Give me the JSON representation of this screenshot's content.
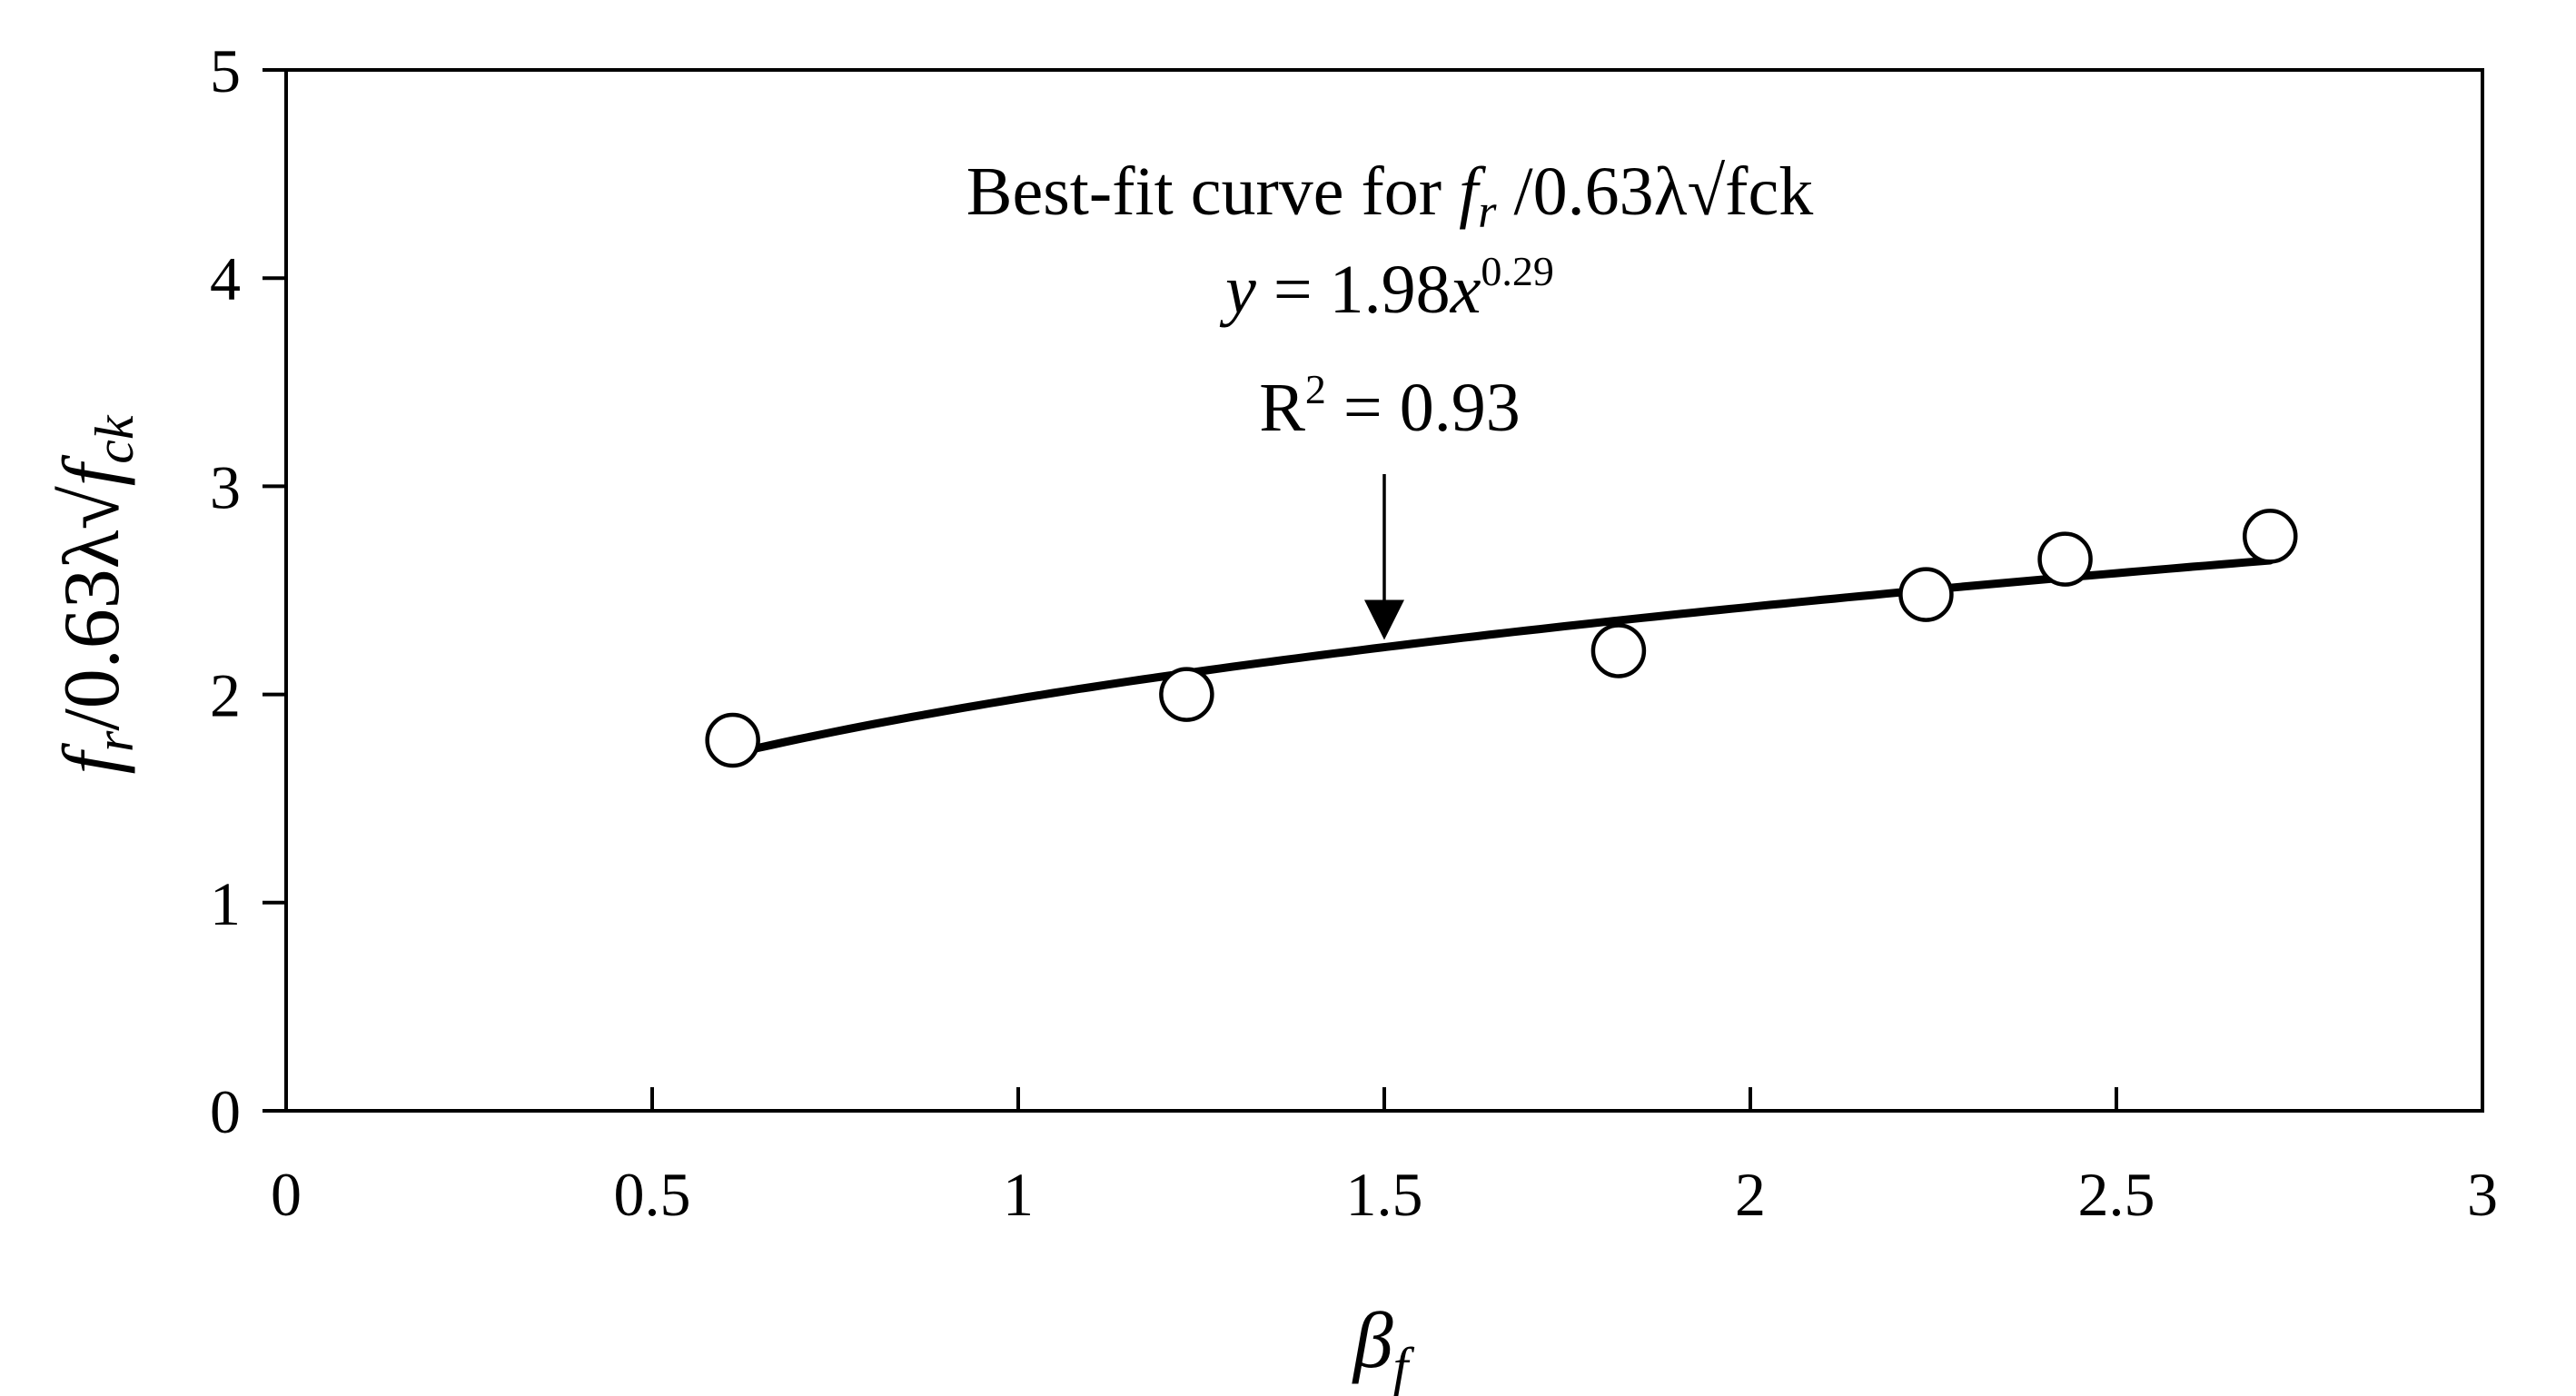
{
  "chart_data": {
    "type": "scatter",
    "xlabel": {
      "base": "β",
      "sub": "f"
    },
    "ylabel": {
      "f": "f",
      "r": "r",
      "mid": "/0.63λ√",
      "f2": "f",
      "ck": "ck"
    },
    "xlim": [
      0,
      3
    ],
    "ylim": [
      0,
      5
    ],
    "xticks": [
      0,
      0.5,
      1,
      1.5,
      2,
      2.5,
      3
    ],
    "xtick_labels": [
      "0",
      "0.5",
      "1",
      "1.5",
      "2",
      "2.5",
      "3"
    ],
    "yticks": [
      0,
      1,
      2,
      3,
      4,
      5
    ],
    "ytick_labels": [
      "0",
      "1",
      "2",
      "3",
      "4",
      "5"
    ],
    "grid": false,
    "legend": "none",
    "series": [
      {
        "kind": "points",
        "marker": "open-circle",
        "x": [
          0.61,
          1.23,
          1.82,
          2.24,
          2.43,
          2.71
        ],
        "y": [
          1.78,
          2.0,
          2.21,
          2.48,
          2.65,
          2.76
        ]
      },
      {
        "kind": "fit",
        "equation": {
          "coef": 1.98,
          "exponent": 0.29
        },
        "x_range": [
          0.61,
          2.71
        ]
      }
    ],
    "annotation": {
      "line1_prefix": "Best-fit curve for ",
      "line1_f": "f",
      "line1_r": "r",
      "line1_suffix": " /0.63λ√fck",
      "line2_y": "y",
      "line2_mid": " = 1.98",
      "line2_x": "x",
      "line2_exp": "0.29",
      "line3_r": "R",
      "line3_sup": "2",
      "line3_value": " = 0.93",
      "arrow_to_x": 1.5
    }
  }
}
